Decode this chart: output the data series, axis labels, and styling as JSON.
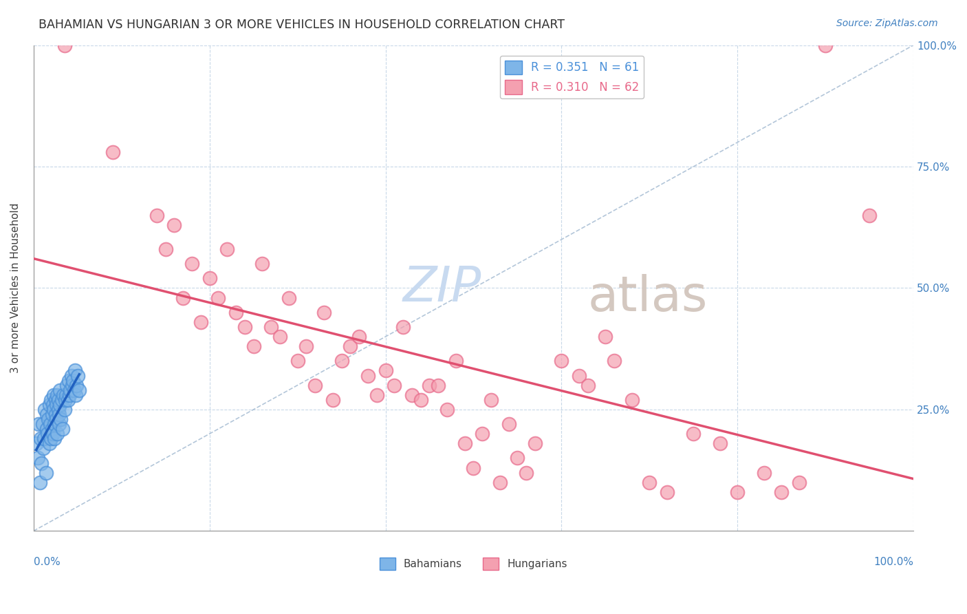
{
  "title": "BAHAMIAN VS HUNGARIAN 3 OR MORE VEHICLES IN HOUSEHOLD CORRELATION CHART",
  "source": "Source: ZipAtlas.com",
  "ylabel": "3 or more Vehicles in Household",
  "bg_color": "#ffffff",
  "scatter_bahamian_color": "#7eb5e8",
  "scatter_hungarian_color": "#f4a0b0",
  "scatter_bahamian_edge": "#4a90d9",
  "scatter_hungarian_edge": "#e8698a",
  "trend_bahamian_color": "#2060c0",
  "trend_hungarian_color": "#e05070",
  "grid_color": "#c8d8e8",
  "diagonal_color": "#a0b8d0",
  "title_color": "#303030",
  "axis_label_color": "#4080c0",
  "watermark_zip_color": "#c8daf0",
  "watermark_atlas_color": "#d4c8c0",
  "bahamians_x": [
    0.3,
    0.5,
    0.6,
    0.7,
    0.8,
    0.9,
    1.0,
    1.1,
    1.2,
    1.3,
    1.4,
    1.5,
    1.5,
    1.6,
    1.7,
    1.8,
    1.8,
    1.9,
    2.0,
    2.0,
    2.1,
    2.1,
    2.2,
    2.2,
    2.3,
    2.3,
    2.4,
    2.4,
    2.5,
    2.5,
    2.6,
    2.6,
    2.7,
    2.7,
    2.8,
    2.8,
    2.9,
    2.9,
    3.0,
    3.0,
    3.1,
    3.2,
    3.3,
    3.4,
    3.5,
    3.6,
    3.7,
    3.8,
    3.9,
    4.0,
    4.1,
    4.2,
    4.3,
    4.4,
    4.5,
    4.6,
    4.7,
    4.8,
    4.9,
    5.0,
    5.2
  ],
  "bahamians_y": [
    18,
    15,
    22,
    10,
    19,
    14,
    22,
    17,
    19,
    25,
    12,
    21,
    24,
    20,
    23,
    26,
    18,
    22,
    27,
    19,
    24,
    21,
    26,
    20,
    25,
    28,
    22,
    19,
    27,
    24,
    26,
    23,
    28,
    20,
    25,
    27,
    22,
    24,
    26,
    29,
    23,
    27,
    21,
    28,
    25,
    27,
    28,
    30,
    27,
    31,
    28,
    29,
    32,
    30,
    31,
    29,
    33,
    28,
    30,
    32,
    29
  ],
  "hungarians_x": [
    3.5,
    9.0,
    14.0,
    15.0,
    16.0,
    17.0,
    18.0,
    19.0,
    20.0,
    21.0,
    22.0,
    23.0,
    24.0,
    25.0,
    26.0,
    27.0,
    28.0,
    29.0,
    30.0,
    31.0,
    32.0,
    33.0,
    34.0,
    35.0,
    36.0,
    37.0,
    38.0,
    39.0,
    40.0,
    41.0,
    42.0,
    43.0,
    44.0,
    45.0,
    46.0,
    47.0,
    48.0,
    49.0,
    50.0,
    51.0,
    52.0,
    53.0,
    54.0,
    55.0,
    56.0,
    57.0,
    60.0,
    62.0,
    63.0,
    65.0,
    66.0,
    68.0,
    70.0,
    72.0,
    75.0,
    78.0,
    80.0,
    83.0,
    85.0,
    87.0,
    90.0,
    95.0
  ],
  "hungarians_y": [
    100.0,
    78.0,
    65.0,
    58.0,
    63.0,
    48.0,
    55.0,
    43.0,
    52.0,
    48.0,
    58.0,
    45.0,
    42.0,
    38.0,
    55.0,
    42.0,
    40.0,
    48.0,
    35.0,
    38.0,
    30.0,
    45.0,
    27.0,
    35.0,
    38.0,
    40.0,
    32.0,
    28.0,
    33.0,
    30.0,
    42.0,
    28.0,
    27.0,
    30.0,
    30.0,
    25.0,
    35.0,
    18.0,
    13.0,
    20.0,
    27.0,
    10.0,
    22.0,
    15.0,
    12.0,
    18.0,
    35.0,
    32.0,
    30.0,
    40.0,
    35.0,
    27.0,
    10.0,
    8.0,
    20.0,
    18.0,
    8.0,
    12.0,
    8.0,
    10.0,
    100.0,
    65.0
  ]
}
